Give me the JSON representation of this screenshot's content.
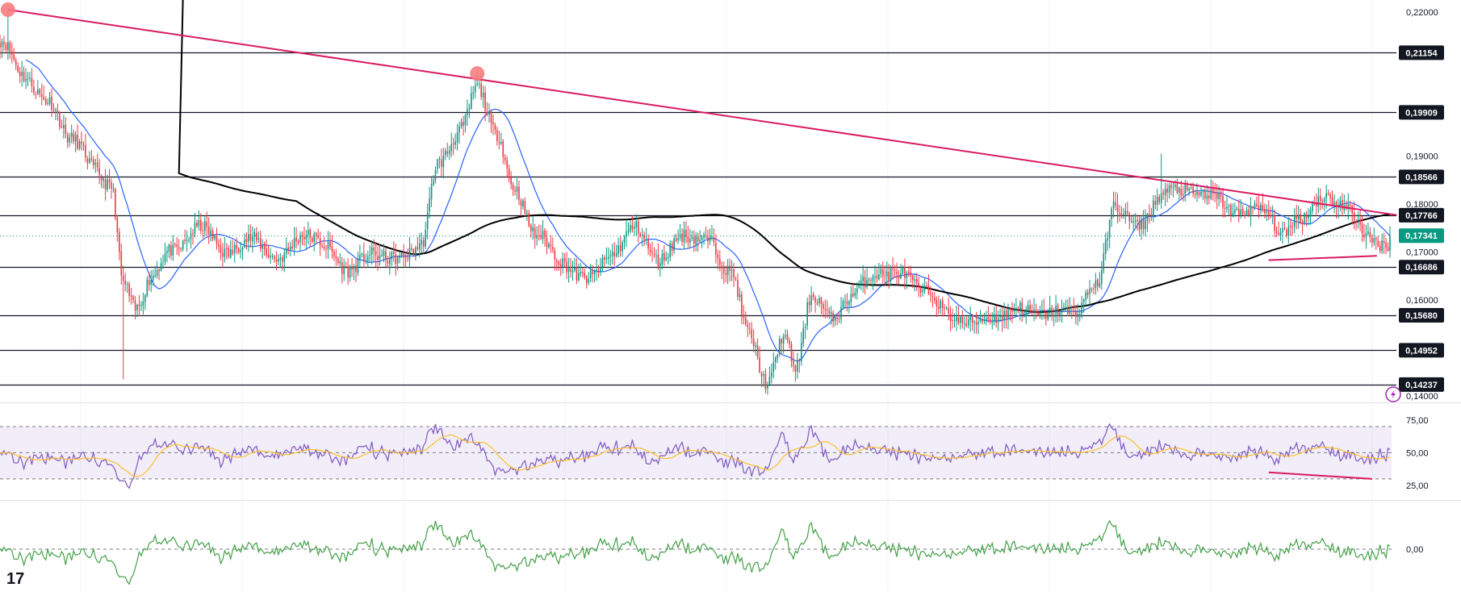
{
  "chart_data": {
    "type": "candlestick",
    "title": "",
    "colors": {
      "bull": "#089981",
      "bear": "#f23645",
      "sma_fast": "#2962ff",
      "sma_slow": "#000000",
      "trendline": "#d81b60",
      "rsi": "#7e57c2",
      "rsi_ma": "#fbc02d",
      "rsi_band_fill": "#7e57c21a",
      "momentum": "#43a047",
      "level_line": "#131722",
      "badge_bg": "#131722",
      "current_badge_bg": "#089981",
      "marker": "#f77c80",
      "alert": "#9c27b0"
    },
    "price_axis": {
      "range": [
        0.1395,
        0.2205
      ],
      "ticks": [
        "0,22000",
        "0,19000",
        "0,18000",
        "0,17000",
        "0,16000",
        "0,14000"
      ],
      "tick_values": [
        0.22,
        0.19,
        0.18,
        0.17,
        0.16,
        0.14
      ]
    },
    "levels": [
      {
        "value": 0.21154,
        "label": "0,21154"
      },
      {
        "value": 0.19909,
        "label": "0,19909"
      },
      {
        "value": 0.18566,
        "label": "0,18566"
      },
      {
        "value": 0.17766,
        "label": "0,17766"
      },
      {
        "value": 0.16686,
        "label": "0,16686"
      },
      {
        "value": 0.1568,
        "label": "0,15680"
      },
      {
        "value": 0.14952,
        "label": "0,14952"
      },
      {
        "value": 0.14237,
        "label": "0,14237"
      }
    ],
    "current_price": {
      "value": 0.17341,
      "label": "0,17341"
    },
    "anchors": [
      [
        0,
        0.214
      ],
      [
        12,
        0.207
      ],
      [
        24,
        0.201
      ],
      [
        36,
        0.194
      ],
      [
        48,
        0.187
      ],
      [
        56,
        0.184
      ],
      [
        62,
        0.163
      ],
      [
        68,
        0.158
      ],
      [
        76,
        0.165
      ],
      [
        86,
        0.17
      ],
      [
        100,
        0.175
      ],
      [
        116,
        0.17
      ],
      [
        128,
        0.173
      ],
      [
        140,
        0.168
      ],
      [
        152,
        0.174
      ],
      [
        164,
        0.171
      ],
      [
        176,
        0.166
      ],
      [
        188,
        0.17
      ],
      [
        200,
        0.168
      ],
      [
        212,
        0.172
      ],
      [
        220,
        0.188
      ],
      [
        232,
        0.196
      ],
      [
        240,
        0.204
      ],
      [
        250,
        0.195
      ],
      [
        258,
        0.183
      ],
      [
        270,
        0.174
      ],
      [
        282,
        0.168
      ],
      [
        296,
        0.164
      ],
      [
        308,
        0.17
      ],
      [
        320,
        0.175
      ],
      [
        332,
        0.168
      ],
      [
        344,
        0.174
      ],
      [
        356,
        0.172
      ],
      [
        368,
        0.166
      ],
      [
        376,
        0.153
      ],
      [
        386,
        0.143
      ],
      [
        394,
        0.152
      ],
      [
        400,
        0.146
      ],
      [
        408,
        0.161
      ],
      [
        418,
        0.156
      ],
      [
        428,
        0.161
      ],
      [
        442,
        0.166
      ],
      [
        454,
        0.165
      ],
      [
        466,
        0.162
      ],
      [
        476,
        0.157
      ],
      [
        490,
        0.155
      ],
      [
        502,
        0.157
      ],
      [
        514,
        0.158
      ],
      [
        528,
        0.157
      ],
      [
        540,
        0.158
      ],
      [
        552,
        0.163
      ],
      [
        560,
        0.18
      ],
      [
        572,
        0.175
      ],
      [
        584,
        0.182
      ],
      [
        596,
        0.183
      ],
      [
        612,
        0.181
      ],
      [
        624,
        0.178
      ],
      [
        636,
        0.179
      ],
      [
        646,
        0.173
      ],
      [
        652,
        0.177
      ],
      [
        664,
        0.181
      ],
      [
        676,
        0.18
      ],
      [
        690,
        0.172
      ]
    ],
    "swing_markers": [
      {
        "index": 4,
        "value": 0.2205
      },
      {
        "index": 240,
        "value": 0.2072
      }
    ],
    "trendlines": [
      {
        "from": [
          4,
          0.2205
        ],
        "to": [
          700,
          0.1777
        ]
      },
      {
        "from": [
          638,
          0.1683
        ],
        "to": [
          690,
          0.1692
        ]
      }
    ],
    "rsi": {
      "ticks": [
        "75,00",
        "50,00",
        "25,00"
      ],
      "tick_values": [
        75,
        50,
        25
      ],
      "range": [
        17,
        86
      ],
      "upper": 70,
      "middle": 50,
      "lower": 30,
      "divergence": {
        "from": [
          638,
          35
        ],
        "to": [
          690,
          30
        ]
      }
    },
    "momentum": {
      "ticks": [
        "0,00"
      ],
      "tick_values": [
        0
      ]
    }
  },
  "branding": {
    "logo": "17"
  }
}
